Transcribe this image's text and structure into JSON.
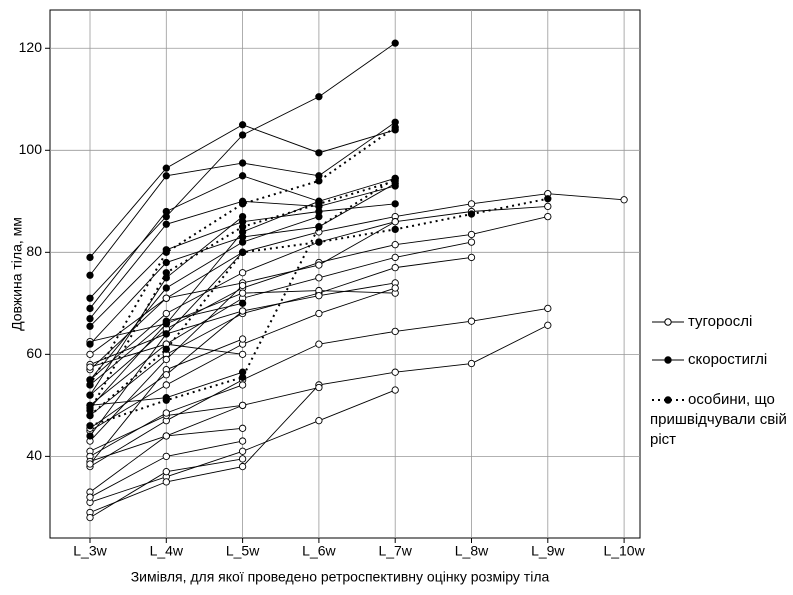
{
  "chart_data": {
    "type": "line",
    "x_label": "Зимівля, для якої проведено ретроспективну оцінку розміру тіла",
    "y_label": "Довжина тіла, мм",
    "categories": [
      "L_3w",
      "L_4w",
      "L_5w",
      "L_6w",
      "L_7w",
      "L_8w",
      "L_9w",
      "L_10w"
    ],
    "ylim": [
      24,
      127.5
    ],
    "yticks": [
      40,
      60,
      80,
      100,
      120
    ],
    "grid": true,
    "series": [
      {
        "name": "тугорослі",
        "color": "#000000",
        "marker": "open",
        "dash": "solid",
        "lines": [
          [
            57,
            71,
            80,
            84,
            87,
            89.5,
            91.5,
            90.3
          ],
          [
            55,
            68,
            76,
            82,
            86,
            88,
            89
          ],
          [
            52,
            65,
            73,
            78,
            81.5,
            83.5,
            87
          ],
          [
            50,
            62,
            71,
            75,
            79,
            82
          ],
          [
            48,
            60,
            68,
            72,
            77,
            79
          ],
          [
            38,
            47,
            55,
            62,
            64.5,
            66.5,
            69
          ],
          [
            31,
            36,
            41,
            47,
            53
          ],
          [
            29,
            35,
            38,
            54,
            56.5,
            58.2,
            65.7
          ],
          [
            60,
            71,
            74,
            77.5,
            86
          ],
          [
            62.5,
            66,
            72,
            72.5,
            72
          ],
          [
            58,
            64,
            68.5,
            71.5,
            74
          ],
          [
            45,
            54,
            62,
            68,
            73
          ],
          [
            41,
            48,
            50,
            53.5
          ],
          [
            33,
            44,
            45.5
          ],
          [
            40,
            48.5,
            54
          ],
          [
            39,
            44,
            50
          ],
          [
            28,
            37,
            39.5
          ],
          [
            32,
            40,
            43
          ],
          [
            38.5,
            57,
            63
          ],
          [
            43,
            59,
            73.5
          ],
          [
            57.5,
            62,
            60
          ],
          [
            45.5,
            56,
            68.5
          ]
        ]
      },
      {
        "name": "скоростиглі",
        "color": "#000000",
        "marker": "filled",
        "dash": "solid",
        "lines": [
          [
            71,
            87,
            103,
            110.5,
            121
          ],
          [
            79,
            96.5,
            105,
            99.5,
            104
          ],
          [
            75.5,
            95,
            97.5,
            95,
            105.5
          ],
          [
            69,
            88,
            95,
            90,
            94.5
          ],
          [
            67,
            85.5,
            90,
            89,
            93
          ],
          [
            65.5,
            80.5,
            86,
            88,
            89.5
          ],
          [
            62,
            78,
            83,
            85,
            93.5
          ],
          [
            55,
            73,
            82,
            87
          ],
          [
            49.5,
            66,
            84,
            90
          ],
          [
            44,
            64,
            80
          ],
          [
            52,
            75,
            87
          ],
          [
            54,
            66.5,
            70
          ],
          [
            50,
            51.5,
            56.5
          ]
        ]
      },
      {
        "name": "особини, що пришвідчували свій ріст",
        "color": "#000000",
        "marker": "filled",
        "dash": "dotted",
        "lines": [
          [
            54,
            80,
            89.5,
            94,
            104.5
          ],
          [
            49,
            76,
            85,
            89.5,
            94
          ],
          [
            48,
            61,
            80,
            82,
            84.5,
            87.5,
            90.5
          ],
          [
            46,
            51,
            55.5,
            85,
            94.5
          ]
        ]
      }
    ]
  }
}
